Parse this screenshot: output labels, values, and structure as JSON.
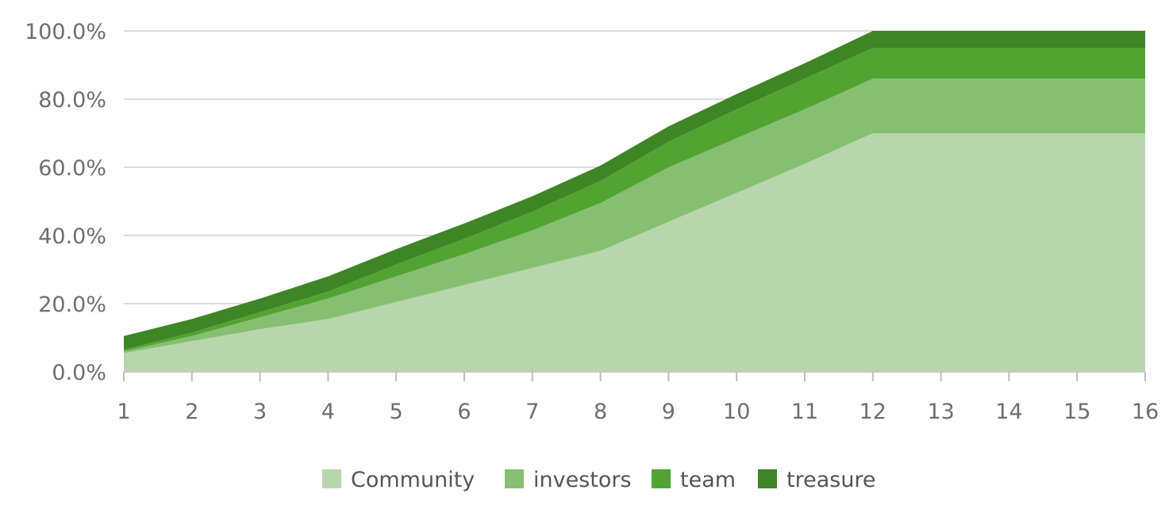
{
  "chart_data": {
    "type": "area",
    "stacked": true,
    "x": [
      1,
      2,
      3,
      4,
      5,
      6,
      7,
      8,
      9,
      10,
      11,
      12,
      13,
      14,
      15,
      16
    ],
    "ylim": [
      0,
      100
    ],
    "yticks": [
      "0.0%",
      "20.0%",
      "40.0%",
      "60.0%",
      "80.0%",
      "100.0%"
    ],
    "xticks": [
      "1",
      "2",
      "3",
      "4",
      "5",
      "6",
      "7",
      "8",
      "9",
      "10",
      "11",
      "12",
      "13",
      "14",
      "15",
      "16"
    ],
    "grid": true,
    "legend_position": "bottom",
    "series": [
      {
        "name": "Community",
        "color": "#b7d6ae",
        "values": [
          5.5,
          9,
          12.5,
          15.5,
          20.5,
          25.5,
          30.5,
          35.5,
          44,
          52.5,
          61,
          70,
          70,
          70,
          70,
          70
        ]
      },
      {
        "name": "investors",
        "color": "#86bf72",
        "values": [
          0.5,
          1.5,
          3.5,
          6,
          7.5,
          9,
          11,
          14,
          16,
          16,
          16,
          16,
          16,
          16,
          16,
          16
        ]
      },
      {
        "name": "team",
        "color": "#53a332",
        "values": [
          0.5,
          1,
          1.5,
          2,
          3.5,
          4.5,
          5.5,
          6.5,
          7.5,
          8.5,
          9,
          9,
          9,
          9,
          9,
          9
        ]
      },
      {
        "name": "treasure",
        "color": "#3e8525",
        "values": [
          4,
          4,
          4,
          4.5,
          4.5,
          4.5,
          4.5,
          4.5,
          4.5,
          4.5,
          4.5,
          5,
          5,
          5,
          5,
          5
        ]
      }
    ]
  }
}
